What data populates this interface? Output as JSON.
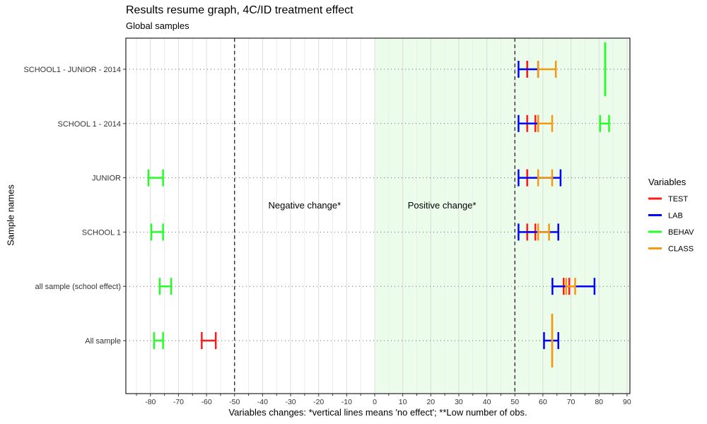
{
  "chart_data": {
    "type": "errorbar-horizontal",
    "title": "Results resume graph, 4C/ID treatment effect",
    "subtitle": "Global samples",
    "xlabel": "Variables changes: *vertical lines means 'no effect'; **Low number of obs.",
    "ylabel": "Sample names",
    "xlim": [
      -89,
      91
    ],
    "x_ticks": [
      -80,
      -70,
      -60,
      -50,
      -40,
      -30,
      -20,
      -10,
      0,
      10,
      20,
      30,
      40,
      50,
      60,
      70,
      80,
      90
    ],
    "categories": [
      "All sample",
      "all sample (school effect)",
      "SCHOOL 1",
      "JUNIOR",
      "SCHOOL 1 - 2014",
      "SCHOOL1 - JUNIOR - 2014"
    ],
    "reference_lines": [
      -50,
      50
    ],
    "shaded_region": {
      "from": 0,
      "to": 90,
      "color": "#ebfceb"
    },
    "annotations": [
      {
        "text": "Negative change*",
        "x": -25,
        "y": 3.5
      },
      {
        "text": "Positive change*",
        "x": 24,
        "y": 3.5
      }
    ],
    "legend": {
      "title": "Variables",
      "position": "right"
    },
    "series": [
      {
        "name": "TEST",
        "color": "#ff1a1a",
        "bars": [
          {
            "category": "All sample",
            "xmin": -61.7,
            "xmax": -56.7,
            "tall": false
          },
          {
            "category": "all sample (school effect)",
            "xmin": 67.4,
            "xmax": 69.4,
            "tall": false
          },
          {
            "category": "SCHOOL 1",
            "xmin": 54.4,
            "xmax": 57.3,
            "tall": false
          },
          {
            "category": "JUNIOR",
            "xmin": 54.4,
            "xmax": 54.4,
            "tall": false
          },
          {
            "category": "SCHOOL 1 - 2014",
            "xmin": 54.4,
            "xmax": 57.3,
            "tall": false
          },
          {
            "category": "SCHOOL1 - JUNIOR - 2014",
            "xmin": 54.4,
            "xmax": 54.4,
            "tall": false
          }
        ]
      },
      {
        "name": "LAB",
        "color": "#0000ff",
        "bars": [
          {
            "category": "All sample",
            "xmin": 60.4,
            "xmax": 65.5,
            "tall": false
          },
          {
            "category": "all sample (school effect)",
            "xmin": 63.4,
            "xmax": 78.4,
            "tall": false
          },
          {
            "category": "SCHOOL 1",
            "xmin": 51.3,
            "xmax": 65.5,
            "tall": false
          },
          {
            "category": "JUNIOR",
            "xmin": 51.3,
            "xmax": 66.3,
            "tall": false
          },
          {
            "category": "SCHOOL 1 - 2014",
            "xmin": 51.3,
            "xmax": 58.3,
            "tall": false
          },
          {
            "category": "SCHOOL1 - JUNIOR - 2014",
            "xmin": 51.3,
            "xmax": 58.3,
            "tall": false
          }
        ]
      },
      {
        "name": "BEHAV",
        "color": "#22ff22",
        "bars": [
          {
            "category": "All sample",
            "xmin": -78.7,
            "xmax": -75.5,
            "tall": false
          },
          {
            "category": "all sample (school effect)",
            "xmin": -76.7,
            "xmax": -72.6,
            "tall": false
          },
          {
            "category": "SCHOOL 1",
            "xmin": -79.7,
            "xmax": -75.5,
            "tall": false
          },
          {
            "category": "JUNIOR",
            "xmin": -80.7,
            "xmax": -75.5,
            "tall": false
          },
          {
            "category": "SCHOOL 1 - 2014",
            "xmin": 80.4,
            "xmax": 83.6,
            "tall": false
          },
          {
            "category": "SCHOOL1 - JUNIOR - 2014",
            "xmin": 82.2,
            "xmax": 82.2,
            "tall": true
          }
        ]
      },
      {
        "name": "CLASS",
        "color": "#f39a10",
        "bars": [
          {
            "category": "All sample",
            "xmin": 63.3,
            "xmax": 63.3,
            "tall": true
          },
          {
            "category": "all sample (school effect)",
            "xmin": 68.3,
            "xmax": 71.5,
            "tall": false
          },
          {
            "category": "SCHOOL 1",
            "xmin": 58.3,
            "xmax": 62.2,
            "tall": false
          },
          {
            "category": "JUNIOR",
            "xmin": 58.3,
            "xmax": 63.3,
            "tall": false
          },
          {
            "category": "SCHOOL 1 - 2014",
            "xmin": 58.3,
            "xmax": 63.3,
            "tall": false
          },
          {
            "category": "SCHOOL1 - JUNIOR - 2014",
            "xmin": 58.3,
            "xmax": 64.6,
            "tall": false
          }
        ]
      }
    ]
  }
}
